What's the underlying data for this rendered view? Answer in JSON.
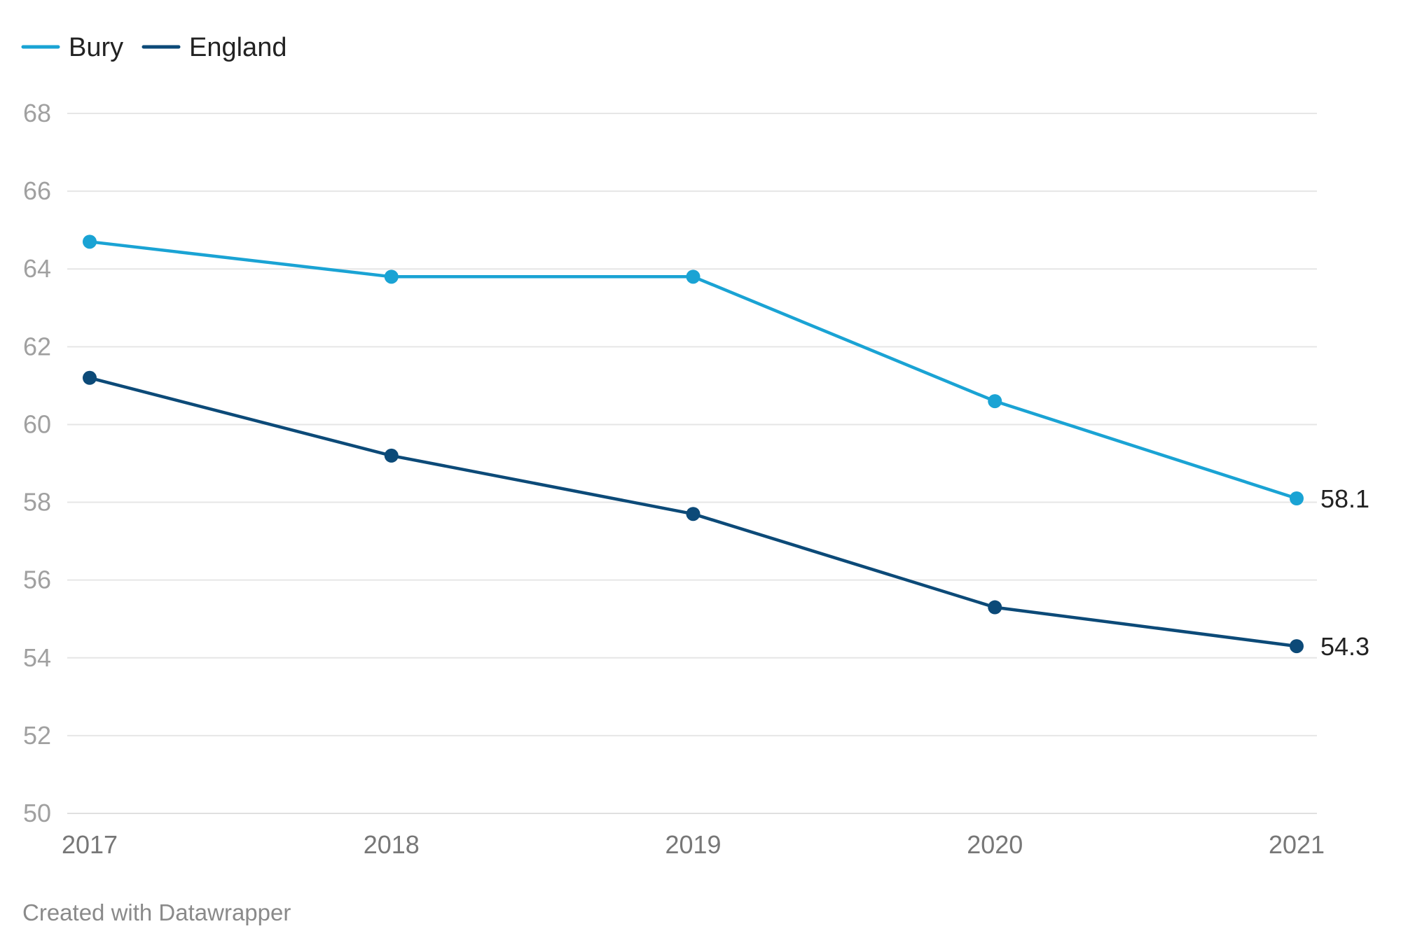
{
  "chart_data": {
    "type": "line",
    "categories": [
      "2017",
      "2018",
      "2019",
      "2020",
      "2021"
    ],
    "series": [
      {
        "name": "Bury",
        "color": "#1aa3d4",
        "values": [
          64.7,
          63.8,
          63.8,
          60.6,
          58.1
        ]
      },
      {
        "name": "England",
        "color": "#0c4a78",
        "values": [
          61.2,
          59.2,
          57.7,
          55.3,
          54.3
        ]
      }
    ],
    "end_labels": [
      "58.1",
      "54.3"
    ],
    "ylim": [
      50,
      68
    ],
    "yticks": [
      "50",
      "52",
      "54",
      "56",
      "58",
      "60",
      "62",
      "64",
      "66",
      "68"
    ],
    "grid": true,
    "legend": "top-left"
  },
  "footer": {
    "text": "Created with Datawrapper"
  }
}
